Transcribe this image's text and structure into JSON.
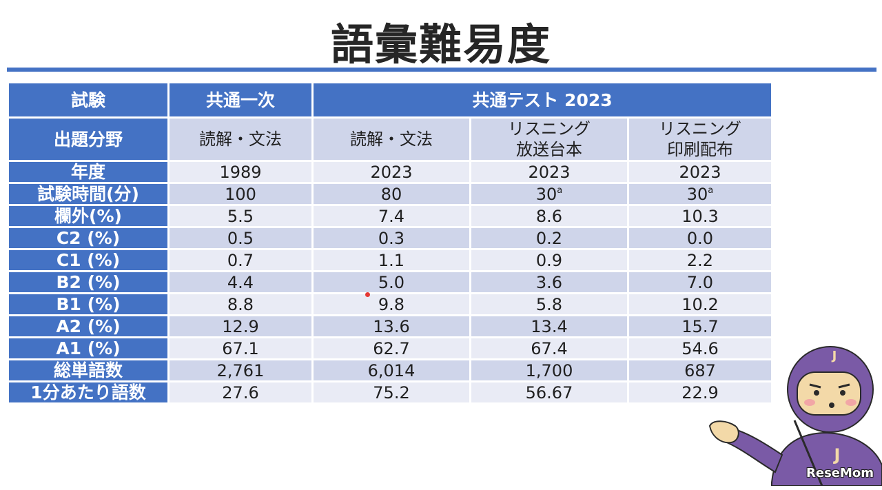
{
  "title": "語彙難易度",
  "header": {
    "exam_label": "試験",
    "exam1": "共通一次",
    "exam2": "共通テスト 2023",
    "field_label": "出題分野",
    "fields": [
      "読解・文法",
      "読解・文法",
      "リスニング\n放送台本",
      "リスニング\n印刷配布"
    ]
  },
  "rows": [
    {
      "label": "年度",
      "values": [
        "1989",
        "2023",
        "2023",
        "2023"
      ]
    },
    {
      "label": "試験時間(分)",
      "values": [
        "100",
        "80",
        "30",
        "30"
      ],
      "superscripts": [
        "",
        "",
        "a",
        "a"
      ]
    },
    {
      "label": "欄外(%)",
      "values": [
        "5.5",
        "7.4",
        "8.6",
        "10.3"
      ]
    },
    {
      "label": "C2 (%)",
      "values": [
        "0.5",
        "0.3",
        "0.2",
        "0.0"
      ]
    },
    {
      "label": "C1 (%)",
      "values": [
        "0.7",
        "1.1",
        "0.9",
        "2.2"
      ]
    },
    {
      "label": "B2 (%)",
      "values": [
        "4.4",
        "5.0",
        "3.6",
        "7.0"
      ]
    },
    {
      "label": "B1 (%)",
      "values": [
        "8.8",
        "9.8",
        "5.8",
        "10.2"
      ]
    },
    {
      "label": "A2 (%)",
      "values": [
        "12.9",
        "13.6",
        "13.4",
        "15.7"
      ]
    },
    {
      "label": "A1 (%)",
      "values": [
        "67.1",
        "62.7",
        "67.4",
        "54.6"
      ]
    },
    {
      "label": "総単語数",
      "values": [
        "2,761",
        "6,014",
        "1,700",
        "687"
      ]
    },
    {
      "label": "1分あたり語数",
      "values": [
        "27.6",
        "75.2",
        "56.67",
        "22.9"
      ]
    }
  ],
  "logo": "ReseMom",
  "mascot_letter": "J",
  "colors": {
    "header_blue": "#4472c4",
    "row_dark": "#cfd5ea",
    "row_light": "#e9ebf5",
    "mascot_purple": "#7a5aa6"
  }
}
